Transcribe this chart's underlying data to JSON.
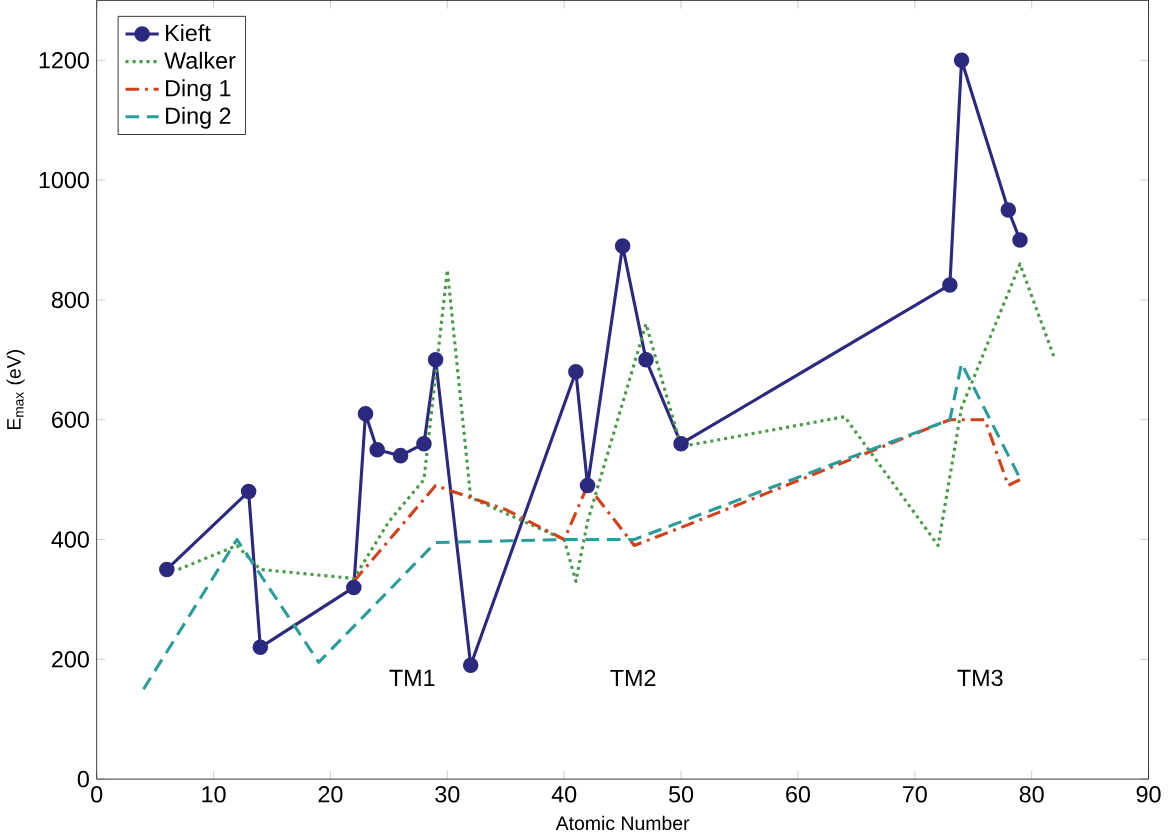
{
  "chart_data": {
    "type": "line",
    "xlabel": "Atomic Number",
    "ylabel": "E$_{max}$ (eV)",
    "xlim": [
      0,
      90
    ],
    "ylim": [
      0,
      1300
    ],
    "xticks": [
      0,
      10,
      20,
      30,
      40,
      50,
      60,
      70,
      80,
      90
    ],
    "yticks": [
      0,
      200,
      400,
      600,
      800,
      1000,
      1200
    ],
    "legend": "top left",
    "grid": false,
    "annotations": [
      "TM1",
      "TM2",
      "TM3"
    ],
    "series": [
      {
        "name": "Kieft",
        "color": "#2b2a7e",
        "marker": "circle",
        "line_style": "solid",
        "x": [
          6,
          13,
          14,
          22,
          23,
          24,
          26,
          28,
          29,
          32,
          41,
          42,
          45,
          47,
          50,
          73,
          74,
          78,
          79
        ],
        "values": [
          350,
          480,
          220,
          320,
          610,
          550,
          540,
          560,
          700,
          190,
          680,
          490,
          890,
          700,
          560,
          825,
          1200,
          950,
          900
        ]
      },
      {
        "name": "Walker",
        "color": "#4a9a4a",
        "marker": "none",
        "line_style": "dotted",
        "x": [
          7,
          12,
          14,
          22,
          25,
          28,
          30,
          32,
          40,
          41,
          42,
          47,
          50,
          64,
          72,
          74,
          79,
          82
        ],
        "values": [
          350,
          390,
          350,
          335,
          430,
          500,
          850,
          470,
          400,
          330,
          430,
          760,
          555,
          605,
          390,
          620,
          860,
          700
        ]
      },
      {
        "name": "Ding 1",
        "color": "#d4401a",
        "marker": "none",
        "line_style": "dashdot",
        "x": [
          22,
          29,
          35,
          40,
          42,
          46,
          50,
          73,
          76,
          78,
          79
        ],
        "values": [
          330,
          490,
          450,
          400,
          490,
          390,
          420,
          600,
          600,
          490,
          500
        ]
      },
      {
        "name": "Ding 2",
        "color": "#2a9c9c",
        "marker": "none",
        "line_style": "dashed",
        "x": [
          4,
          12,
          19,
          29,
          40,
          46,
          73,
          74,
          79
        ],
        "values": [
          150,
          400,
          195,
          395,
          400,
          400,
          600,
          694,
          502
        ]
      }
    ]
  }
}
